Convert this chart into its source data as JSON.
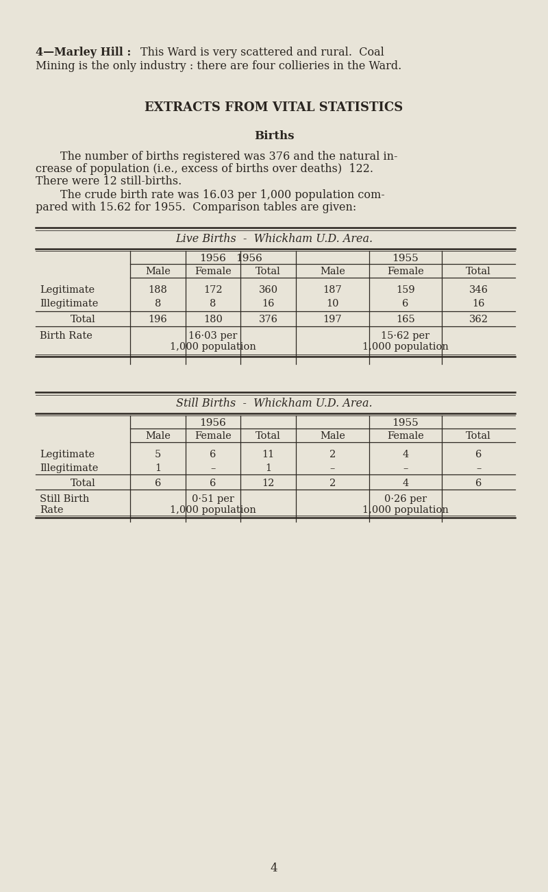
{
  "bg_color": "#e8e4d8",
  "text_color": "#2a2520",
  "page_number": "4",
  "section_heading": "EXTRACTS FROM VITAL STATISTICS",
  "subsection_heading": "Births",
  "live_births_title": "Live Births  -  Whickham U.D. Area.",
  "still_births_title": "Still Births  -  Whickham U.D. Area.",
  "live_births": {
    "rows": [
      {
        "label": "Legitimate",
        "vals": [
          "188",
          "172",
          "360",
          "187",
          "159",
          "346"
        ]
      },
      {
        "label": "Illegitimate",
        "vals": [
          "8",
          "8",
          "16",
          "10",
          "6",
          "16"
        ]
      }
    ],
    "total_row": {
      "label": "Total",
      "vals": [
        "196",
        "180",
        "376",
        "197",
        "165",
        "362"
      ]
    },
    "rate_1956": "16·03 per\n1,000 population",
    "rate_1955": "15·62 per\n1,000 population"
  },
  "still_births": {
    "rows": [
      {
        "label": "Legitimate",
        "vals": [
          "5",
          "6",
          "11",
          "2",
          "4",
          "6"
        ]
      },
      {
        "label": "Illegitimate",
        "vals": [
          "1",
          "–",
          "1",
          "–",
          "–",
          "–"
        ]
      }
    ],
    "total_row": {
      "label": "Total",
      "vals": [
        "6",
        "6",
        "12",
        "2",
        "4",
        "6"
      ]
    },
    "rate_1956": "0·51 per\n1,000 population",
    "rate_1955": "0·26 per\n1,000 population"
  }
}
